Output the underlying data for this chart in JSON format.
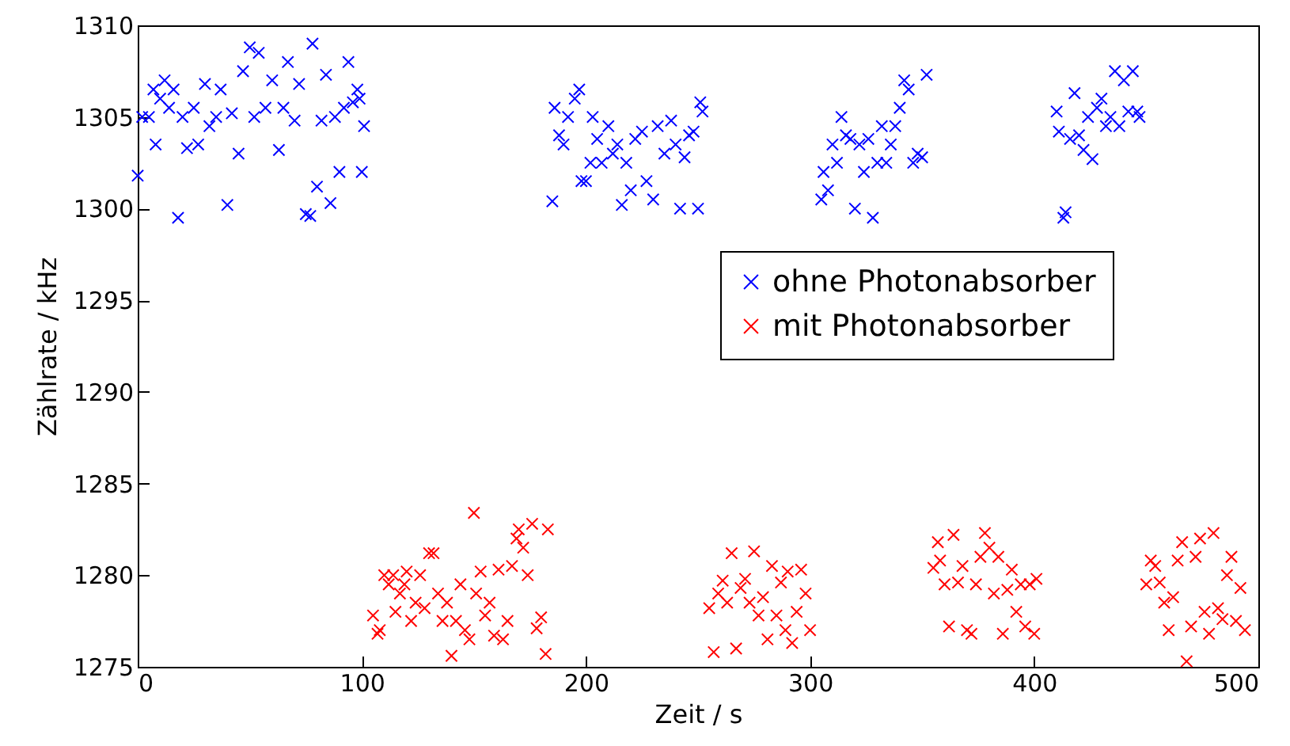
{
  "chart_data": {
    "type": "scatter",
    "xlabel": "Zeit / s",
    "ylabel": "Zählrate / kHz",
    "xlim": [
      0,
      500
    ],
    "xticks": [
      0,
      100,
      200,
      300,
      400,
      500
    ],
    "ylim": [
      1275,
      1310
    ],
    "yticks": [
      1275,
      1280,
      1285,
      1290,
      1295,
      1300,
      1305,
      1310
    ],
    "grid": false,
    "legend": "right",
    "marker": "cross",
    "series": [
      {
        "name": "ohne Photonabsorber",
        "color": "#0000ff",
        "x": [
          0,
          2,
          5,
          7,
          8,
          10,
          12,
          14,
          16,
          18,
          20,
          22,
          25,
          27,
          30,
          32,
          35,
          37,
          40,
          42,
          45,
          47,
          50,
          52,
          54,
          57,
          60,
          63,
          65,
          67,
          70,
          72,
          75,
          77,
          78,
          80,
          82,
          84,
          86,
          88,
          90,
          92,
          94,
          96,
          98,
          99,
          100,
          101,
          185,
          186,
          188,
          190,
          192,
          195,
          197,
          198,
          200,
          202,
          203,
          205,
          207,
          210,
          212,
          214,
          216,
          218,
          220,
          222,
          225,
          227,
          230,
          232,
          235,
          238,
          240,
          242,
          244,
          246,
          248,
          250,
          251,
          252,
          305,
          306,
          308,
          310,
          312,
          314,
          316,
          318,
          320,
          322,
          324,
          326,
          328,
          330,
          332,
          334,
          336,
          338,
          340,
          342,
          344,
          346,
          348,
          350,
          352,
          410,
          411,
          413,
          414,
          416,
          418,
          420,
          422,
          424,
          426,
          428,
          430,
          432,
          434,
          436,
          438,
          440,
          442,
          444,
          446,
          447
        ],
        "values": [
          1301.8,
          1305,
          1305,
          1306.5,
          1303.5,
          1306,
          1307,
          1305.5,
          1306.5,
          1299.5,
          1305,
          1303.3,
          1305.5,
          1303.5,
          1306.8,
          1304.5,
          1305,
          1306.5,
          1300.2,
          1305.2,
          1303,
          1307.5,
          1308.8,
          1305,
          1308.5,
          1305.5,
          1307,
          1303.2,
          1305.5,
          1308,
          1304.8,
          1306.8,
          1299.7,
          1299.6,
          1309,
          1301.2,
          1304.8,
          1307.3,
          1300.3,
          1305,
          1302,
          1305.5,
          1308,
          1305.8,
          1306.5,
          1306,
          1302,
          1304.5,
          1300.4,
          1305.5,
          1304,
          1303.5,
          1305,
          1306,
          1306.5,
          1301.5,
          1301.5,
          1302.5,
          1305,
          1303.8,
          1302.5,
          1304.5,
          1303,
          1303.5,
          1300.2,
          1302.5,
          1301,
          1303.8,
          1304.2,
          1301.5,
          1300.5,
          1304.5,
          1303,
          1304.8,
          1303.5,
          1300,
          1302.8,
          1304,
          1304.2,
          1300,
          1305.8,
          1305.3,
          1300.5,
          1302,
          1301,
          1303.5,
          1302.5,
          1305,
          1304,
          1303.8,
          1300,
          1303.5,
          1302,
          1303.8,
          1299.5,
          1302.5,
          1304.5,
          1302.5,
          1303.5,
          1304.5,
          1305.5,
          1307,
          1306.5,
          1302.5,
          1303,
          1302.8,
          1307.3,
          1305.3,
          1304.2,
          1299.5,
          1299.8,
          1303.8,
          1306.3,
          1304,
          1303.2,
          1305,
          1302.7,
          1305.5,
          1306,
          1304.5,
          1305,
          1307.5,
          1304.5,
          1307,
          1305.3,
          1307.5,
          1305.3,
          1305
        ]
      },
      {
        "name": "mit Photonabsorber",
        "color": "#ff0000",
        "x": [
          105,
          107,
          108,
          110,
          112,
          114,
          115,
          117,
          119,
          120,
          122,
          124,
          126,
          128,
          130,
          132,
          134,
          136,
          138,
          140,
          142,
          144,
          146,
          148,
          150,
          151,
          153,
          155,
          157,
          159,
          161,
          163,
          165,
          167,
          169,
          170,
          172,
          174,
          176,
          178,
          180,
          182,
          183,
          255,
          257,
          259,
          261,
          263,
          265,
          267,
          269,
          271,
          273,
          275,
          277,
          279,
          281,
          283,
          285,
          287,
          289,
          290,
          292,
          294,
          296,
          298,
          300,
          355,
          357,
          358,
          360,
          362,
          364,
          366,
          368,
          370,
          372,
          374,
          376,
          378,
          380,
          382,
          384,
          386,
          388,
          390,
          392,
          394,
          396,
          398,
          400,
          401,
          450,
          452,
          454,
          456,
          458,
          460,
          462,
          464,
          466,
          468,
          470,
          472,
          474,
          476,
          478,
          480,
          482,
          484,
          486,
          488,
          490,
          492,
          494
        ],
        "values": [
          1277.8,
          1276.8,
          1277,
          1280,
          1279.5,
          1280,
          1278,
          1279,
          1279.5,
          1280.2,
          1277.5,
          1278.5,
          1280,
          1278.2,
          1281.2,
          1281.2,
          1279,
          1277.5,
          1278.5,
          1275.6,
          1277.5,
          1279.5,
          1277,
          1276.5,
          1283.4,
          1279,
          1280.2,
          1277.8,
          1278.5,
          1276.7,
          1280.3,
          1276.5,
          1277.5,
          1280.5,
          1282,
          1282.5,
          1281.5,
          1280,
          1282.8,
          1277.1,
          1277.7,
          1275.7,
          1282.5,
          1278.2,
          1275.8,
          1279,
          1279.7,
          1278.5,
          1281.2,
          1276,
          1279.3,
          1279.8,
          1278.5,
          1281.3,
          1277.8,
          1278.8,
          1276.5,
          1280.5,
          1277.8,
          1279.6,
          1277,
          1280.2,
          1276.3,
          1278,
          1280.3,
          1279,
          1277,
          1280.4,
          1281.8,
          1280.8,
          1279.5,
          1277.2,
          1282.2,
          1279.6,
          1280.5,
          1277,
          1276.8,
          1279.5,
          1281,
          1282.3,
          1281.5,
          1279,
          1281,
          1276.8,
          1279.2,
          1280.3,
          1278,
          1279.5,
          1277.2,
          1279.5,
          1276.8,
          1279.8,
          1279.5,
          1280.8,
          1280.5,
          1279.6,
          1278.5,
          1277,
          1278.8,
          1280.8,
          1281.8,
          1275.3,
          1277.2,
          1281,
          1282,
          1278,
          1276.8,
          1282.3,
          1278.2,
          1277.6,
          1280,
          1281,
          1277.5,
          1279.3,
          1277
        ]
      }
    ]
  }
}
